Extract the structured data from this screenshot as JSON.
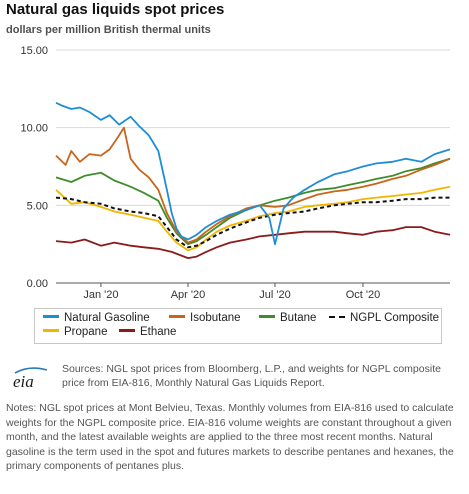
{
  "header": {
    "title": "Natural gas liquids spot prices",
    "subtitle": "dollars per million British thermal units"
  },
  "chart_data": {
    "type": "line",
    "ylim": [
      0,
      15
    ],
    "y_ticks": [
      "0.00",
      "5.00",
      "10.00",
      "15.00"
    ],
    "x_ticks": [
      {
        "label": "Jan '20",
        "date": "2020-01-01"
      },
      {
        "label": "Apr '20",
        "date": "2020-04-01"
      },
      {
        "label": "Jul '20",
        "date": "2020-07-01"
      },
      {
        "label": "Oct '20",
        "date": "2020-10-01"
      }
    ],
    "x_range": [
      "2019-11-15",
      "2020-12-31"
    ],
    "grid": "horizontal",
    "legend_position": "bottom",
    "series": [
      {
        "name": "Natural Gasoline",
        "color": "#1f8dd6",
        "dash": false,
        "x": [
          "2019-11-15",
          "2019-11-22",
          "2019-12-01",
          "2019-12-10",
          "2019-12-20",
          "2020-01-01",
          "2020-01-10",
          "2020-01-20",
          "2020-02-01",
          "2020-02-10",
          "2020-02-20",
          "2020-03-01",
          "2020-03-10",
          "2020-03-15",
          "2020-03-20",
          "2020-03-25",
          "2020-04-01",
          "2020-04-10",
          "2020-04-20",
          "2020-05-01",
          "2020-05-15",
          "2020-06-01",
          "2020-06-15",
          "2020-06-25",
          "2020-07-01",
          "2020-07-10",
          "2020-07-20",
          "2020-08-01",
          "2020-08-15",
          "2020-09-01",
          "2020-09-15",
          "2020-10-01",
          "2020-10-15",
          "2020-11-01",
          "2020-11-15",
          "2020-12-01",
          "2020-12-15",
          "2020-12-31"
        ],
        "y": [
          11.6,
          11.4,
          11.2,
          11.3,
          11.0,
          10.5,
          10.8,
          10.2,
          10.7,
          10.1,
          9.5,
          8.5,
          6.0,
          4.5,
          3.5,
          3.0,
          2.8,
          3.1,
          3.6,
          4.0,
          4.4,
          4.7,
          5.0,
          4.2,
          2.5,
          4.8,
          5.5,
          6.0,
          6.5,
          7.0,
          7.2,
          7.5,
          7.7,
          7.8,
          8.0,
          7.8,
          8.3,
          8.6
        ]
      },
      {
        "name": "Isobutane",
        "color": "#c8651c",
        "dash": false,
        "x": [
          "2019-11-15",
          "2019-11-25",
          "2019-12-01",
          "2019-12-10",
          "2019-12-20",
          "2020-01-01",
          "2020-01-10",
          "2020-01-20",
          "2020-01-25",
          "2020-02-01",
          "2020-02-10",
          "2020-02-20",
          "2020-03-01",
          "2020-03-10",
          "2020-03-20",
          "2020-04-01",
          "2020-04-10",
          "2020-04-20",
          "2020-05-01",
          "2020-05-15",
          "2020-06-01",
          "2020-06-15",
          "2020-07-01",
          "2020-07-15",
          "2020-08-01",
          "2020-08-15",
          "2020-09-01",
          "2020-09-15",
          "2020-10-01",
          "2020-10-15",
          "2020-11-01",
          "2020-11-15",
          "2020-12-01",
          "2020-12-15",
          "2020-12-31"
        ],
        "y": [
          8.2,
          7.6,
          8.5,
          7.8,
          8.3,
          8.2,
          8.6,
          9.5,
          10.0,
          8.0,
          7.3,
          6.8,
          6.0,
          4.5,
          3.3,
          2.6,
          2.8,
          3.3,
          3.8,
          4.3,
          4.8,
          5.0,
          4.9,
          5.0,
          5.4,
          5.7,
          5.9,
          6.0,
          6.2,
          6.4,
          6.7,
          6.9,
          7.3,
          7.6,
          8.0
        ]
      },
      {
        "name": "Butane",
        "color": "#3f8d2a",
        "dash": false,
        "x": [
          "2019-11-15",
          "2019-12-01",
          "2019-12-15",
          "2020-01-01",
          "2020-01-15",
          "2020-02-01",
          "2020-02-15",
          "2020-03-01",
          "2020-03-10",
          "2020-03-20",
          "2020-04-01",
          "2020-04-10",
          "2020-04-20",
          "2020-05-01",
          "2020-05-15",
          "2020-06-01",
          "2020-06-15",
          "2020-07-01",
          "2020-07-15",
          "2020-08-01",
          "2020-08-15",
          "2020-09-01",
          "2020-09-15",
          "2020-10-01",
          "2020-10-15",
          "2020-11-01",
          "2020-11-15",
          "2020-12-01",
          "2020-12-15",
          "2020-12-31"
        ],
        "y": [
          6.8,
          6.5,
          6.9,
          7.1,
          6.6,
          6.2,
          5.8,
          5.3,
          4.2,
          3.2,
          2.5,
          2.7,
          3.1,
          3.6,
          4.2,
          4.7,
          5.0,
          5.3,
          5.5,
          5.8,
          6.0,
          6.1,
          6.3,
          6.5,
          6.7,
          6.9,
          7.2,
          7.4,
          7.7,
          8.0
        ]
      },
      {
        "name": "NGPL Composite",
        "color": "#111111",
        "dash": true,
        "x": [
          "2019-11-15",
          "2019-12-01",
          "2019-12-15",
          "2020-01-01",
          "2020-01-15",
          "2020-02-01",
          "2020-02-15",
          "2020-03-01",
          "2020-03-10",
          "2020-03-20",
          "2020-04-01",
          "2020-04-10",
          "2020-04-20",
          "2020-05-01",
          "2020-05-15",
          "2020-06-01",
          "2020-06-15",
          "2020-07-01",
          "2020-07-15",
          "2020-08-01",
          "2020-08-15",
          "2020-09-01",
          "2020-09-15",
          "2020-10-01",
          "2020-10-15",
          "2020-11-01",
          "2020-11-15",
          "2020-12-01",
          "2020-12-15",
          "2020-12-31"
        ],
        "y": [
          5.5,
          5.4,
          5.2,
          5.1,
          4.8,
          4.6,
          4.5,
          4.3,
          3.6,
          2.8,
          2.3,
          2.4,
          2.7,
          3.1,
          3.5,
          3.9,
          4.2,
          4.4,
          4.5,
          4.6,
          4.8,
          5.0,
          5.1,
          5.2,
          5.2,
          5.3,
          5.4,
          5.4,
          5.5,
          5.5
        ]
      },
      {
        "name": "Propane",
        "color": "#f2b600",
        "dash": false,
        "x": [
          "2019-11-15",
          "2019-12-01",
          "2019-12-15",
          "2020-01-01",
          "2020-01-15",
          "2020-02-01",
          "2020-02-15",
          "2020-03-01",
          "2020-03-10",
          "2020-03-20",
          "2020-04-01",
          "2020-04-10",
          "2020-04-20",
          "2020-05-01",
          "2020-05-15",
          "2020-06-01",
          "2020-06-15",
          "2020-07-01",
          "2020-07-15",
          "2020-08-01",
          "2020-08-15",
          "2020-09-01",
          "2020-09-15",
          "2020-10-01",
          "2020-10-15",
          "2020-11-01",
          "2020-11-15",
          "2020-12-01",
          "2020-12-15",
          "2020-12-31"
        ],
        "y": [
          6.0,
          5.1,
          5.2,
          4.9,
          4.6,
          4.4,
          4.2,
          4.0,
          3.3,
          2.6,
          2.1,
          2.3,
          2.8,
          3.3,
          3.7,
          4.0,
          4.3,
          4.5,
          4.6,
          4.9,
          5.0,
          5.1,
          5.2,
          5.4,
          5.5,
          5.6,
          5.7,
          5.8,
          6.0,
          6.2
        ]
      },
      {
        "name": "Ethane",
        "color": "#8b1a1a",
        "dash": false,
        "x": [
          "2019-11-15",
          "2019-12-01",
          "2019-12-15",
          "2020-01-01",
          "2020-01-15",
          "2020-02-01",
          "2020-02-15",
          "2020-03-01",
          "2020-03-15",
          "2020-04-01",
          "2020-04-10",
          "2020-04-20",
          "2020-05-01",
          "2020-05-15",
          "2020-06-01",
          "2020-06-15",
          "2020-07-01",
          "2020-07-15",
          "2020-08-01",
          "2020-08-15",
          "2020-09-01",
          "2020-09-15",
          "2020-10-01",
          "2020-10-15",
          "2020-11-01",
          "2020-11-15",
          "2020-12-01",
          "2020-12-15",
          "2020-12-31"
        ],
        "y": [
          2.7,
          2.6,
          2.8,
          2.4,
          2.6,
          2.4,
          2.3,
          2.2,
          2.0,
          1.6,
          1.7,
          2.0,
          2.3,
          2.6,
          2.8,
          3.0,
          3.1,
          3.2,
          3.3,
          3.3,
          3.3,
          3.2,
          3.1,
          3.3,
          3.4,
          3.6,
          3.6,
          3.3,
          3.1
        ]
      }
    ]
  },
  "footer": {
    "logo_text": "eia",
    "sources": "Sources: NGL spot prices from Bloomberg, L.P., and weights for NGPL composite price from EIA-816, Monthly Natural Gas Liquids Report.",
    "notes": "Notes: NGL spot prices at Mont Belvieu, Texas. Monthly volumes from EIA-816 used to calculate weights for the NGPL composite price. EIA-816 volume weights are constant throughout a given month, and the latest available weights are applied to the three most recent months. Natural gasoline is the term used in the spot and futures markets to describe pentanes and hexanes, the primary components of pentanes plus."
  }
}
